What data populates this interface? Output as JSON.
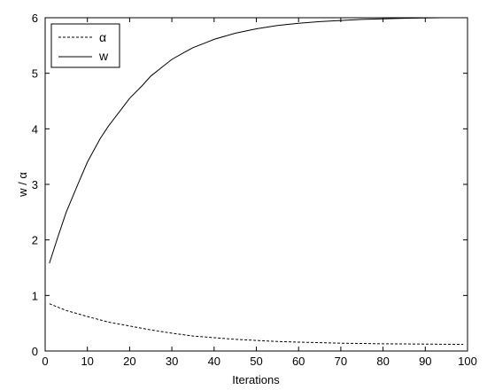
{
  "chart_data": {
    "type": "line",
    "title": "",
    "xlabel": "Iterations",
    "ylabel": "w / α",
    "xlim": [
      0,
      100
    ],
    "ylim": [
      0,
      6
    ],
    "xticks": [
      "0",
      "10",
      "20",
      "30",
      "40",
      "50",
      "60",
      "70",
      "80",
      "90",
      "100"
    ],
    "yticks": [
      "0",
      "1",
      "2",
      "3",
      "4",
      "5",
      "6"
    ],
    "grid": false,
    "legend_position": "top-left",
    "series": [
      {
        "name": "α",
        "line_style": "dashed",
        "color": "#000000",
        "x": [
          1,
          5,
          10,
          15,
          20,
          25,
          30,
          35,
          40,
          45,
          50,
          55,
          60,
          65,
          70,
          75,
          80,
          85,
          90,
          95,
          99
        ],
        "y": [
          0.85,
          0.73,
          0.62,
          0.52,
          0.45,
          0.38,
          0.32,
          0.27,
          0.24,
          0.21,
          0.19,
          0.17,
          0.16,
          0.15,
          0.14,
          0.135,
          0.13,
          0.128,
          0.125,
          0.122,
          0.12
        ]
      },
      {
        "name": "w",
        "line_style": "solid",
        "color": "#000000",
        "x": [
          1,
          3,
          5,
          8,
          10,
          13,
          15,
          18,
          20,
          23,
          25,
          28,
          30,
          33,
          35,
          38,
          40,
          45,
          50,
          55,
          60,
          65,
          70,
          75,
          80,
          85,
          90,
          94
        ],
        "y": [
          1.58,
          2.05,
          2.5,
          3.05,
          3.4,
          3.82,
          4.05,
          4.35,
          4.55,
          4.78,
          4.95,
          5.13,
          5.25,
          5.38,
          5.46,
          5.55,
          5.61,
          5.72,
          5.8,
          5.86,
          5.9,
          5.93,
          5.95,
          5.97,
          5.98,
          5.99,
          5.995,
          6.0
        ]
      }
    ]
  }
}
